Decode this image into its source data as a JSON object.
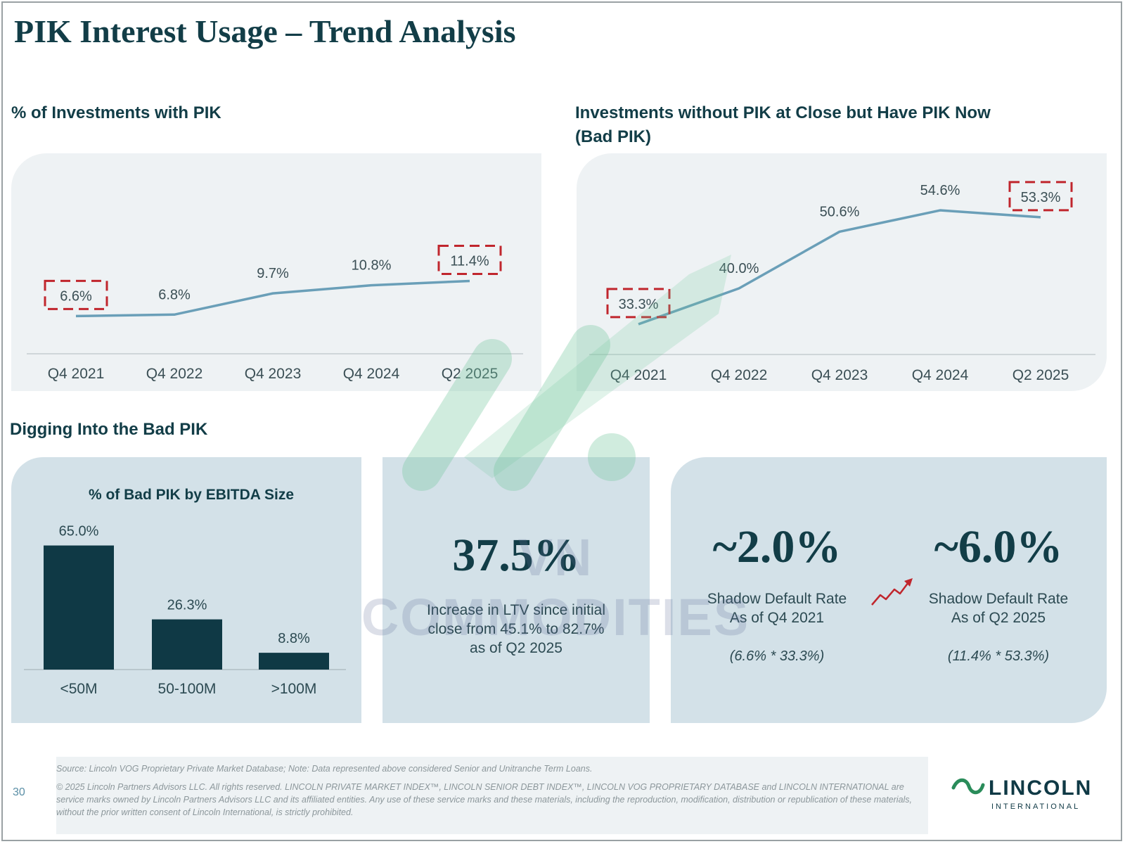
{
  "page": {
    "title": "PIK Interest Usage – Trend Analysis",
    "page_number": "30"
  },
  "sections": {
    "left_chart_title": "% of Investments with PIK",
    "right_chart_title_line1": "Investments without PIK at Close but Have PIK Now",
    "right_chart_title_line2": "(Bad PIK)",
    "bottom_title": "Digging Into the Bad PIK"
  },
  "chart_data": [
    {
      "type": "line",
      "title": "% of Investments with PIK",
      "categories": [
        "Q4 2021",
        "Q4 2022",
        "Q4 2023",
        "Q4 2024",
        "Q2 2025"
      ],
      "values": [
        6.6,
        6.8,
        9.7,
        10.8,
        11.4
      ],
      "labels": [
        "6.6%",
        "6.8%",
        "9.7%",
        "10.8%",
        "11.4%"
      ],
      "highlighted": [
        0,
        4
      ],
      "ylim": [
        0,
        25
      ],
      "color": "#6a9fb8",
      "grid": false
    },
    {
      "type": "line",
      "title": "Investments without PIK at Close but Have PIK Now (Bad PIK)",
      "categories": [
        "Q4 2021",
        "Q4 2022",
        "Q4 2023",
        "Q4 2024",
        "Q2 2025"
      ],
      "values": [
        33.3,
        40.0,
        50.6,
        54.6,
        53.3
      ],
      "labels": [
        "33.3%",
        "40.0%",
        "50.6%",
        "54.6%",
        "53.3%"
      ],
      "highlighted": [
        0,
        4
      ],
      "ylim": [
        20,
        60
      ],
      "color": "#6a9fb8",
      "grid": false
    },
    {
      "type": "bar",
      "title": "% of Bad PIK by EBITDA Size",
      "categories": [
        "<50M",
        "50-100M",
        ">100M"
      ],
      "values": [
        65.0,
        26.3,
        8.8
      ],
      "labels": [
        "65.0%",
        "26.3%",
        "8.8%"
      ],
      "ylim": [
        0,
        70
      ],
      "color": "#0f3945"
    }
  ],
  "ltv": {
    "value": "37.5%",
    "line1": "Increase in LTV since initial",
    "line2": "close from 45.1% to 82.7%",
    "line3": "as of Q2 2025"
  },
  "shadow": {
    "left_value": "~2.0%",
    "left_line1": "Shadow Default Rate",
    "left_line2": "As of Q4 2021",
    "left_formula": "(6.6% * 33.3%)",
    "right_value": "~6.0%",
    "right_line1": "Shadow Default Rate",
    "right_line2": "As of Q2 2025",
    "right_formula": "(11.4% * 53.3%)"
  },
  "footer": {
    "source": "Source: Lincoln VOG Proprietary Private Market Database; Note: Data represented above considered Senior and Unitranche Term Loans.",
    "copyright": "© 2025 Lincoln Partners Advisors LLC. All rights reserved.  LINCOLN PRIVATE MARKET INDEX™, LINCOLN SENIOR DEBT INDEX™, LINCOLN VOG PROPRIETARY DATABASE and LINCOLN INTERNATIONAL are service marks owned by Lincoln Partners Advisors LLC and its affiliated entities.  Any use of these service marks and these materials, including the reproduction, modification, distribution or republication of these materials, without the prior written consent of Lincoln International, is strictly prohibited."
  },
  "logo": {
    "name": "LINCOLN",
    "sub": "INTERNATIONAL"
  },
  "watermark": "VN COMMODITIES",
  "colors": {
    "navy": "#0f3945",
    "line": "#6a9fb8",
    "highlight": "#c0262d",
    "panel": "#eef2f4",
    "box": "#d3e1e8",
    "logo_green": "#2a8c5a"
  }
}
